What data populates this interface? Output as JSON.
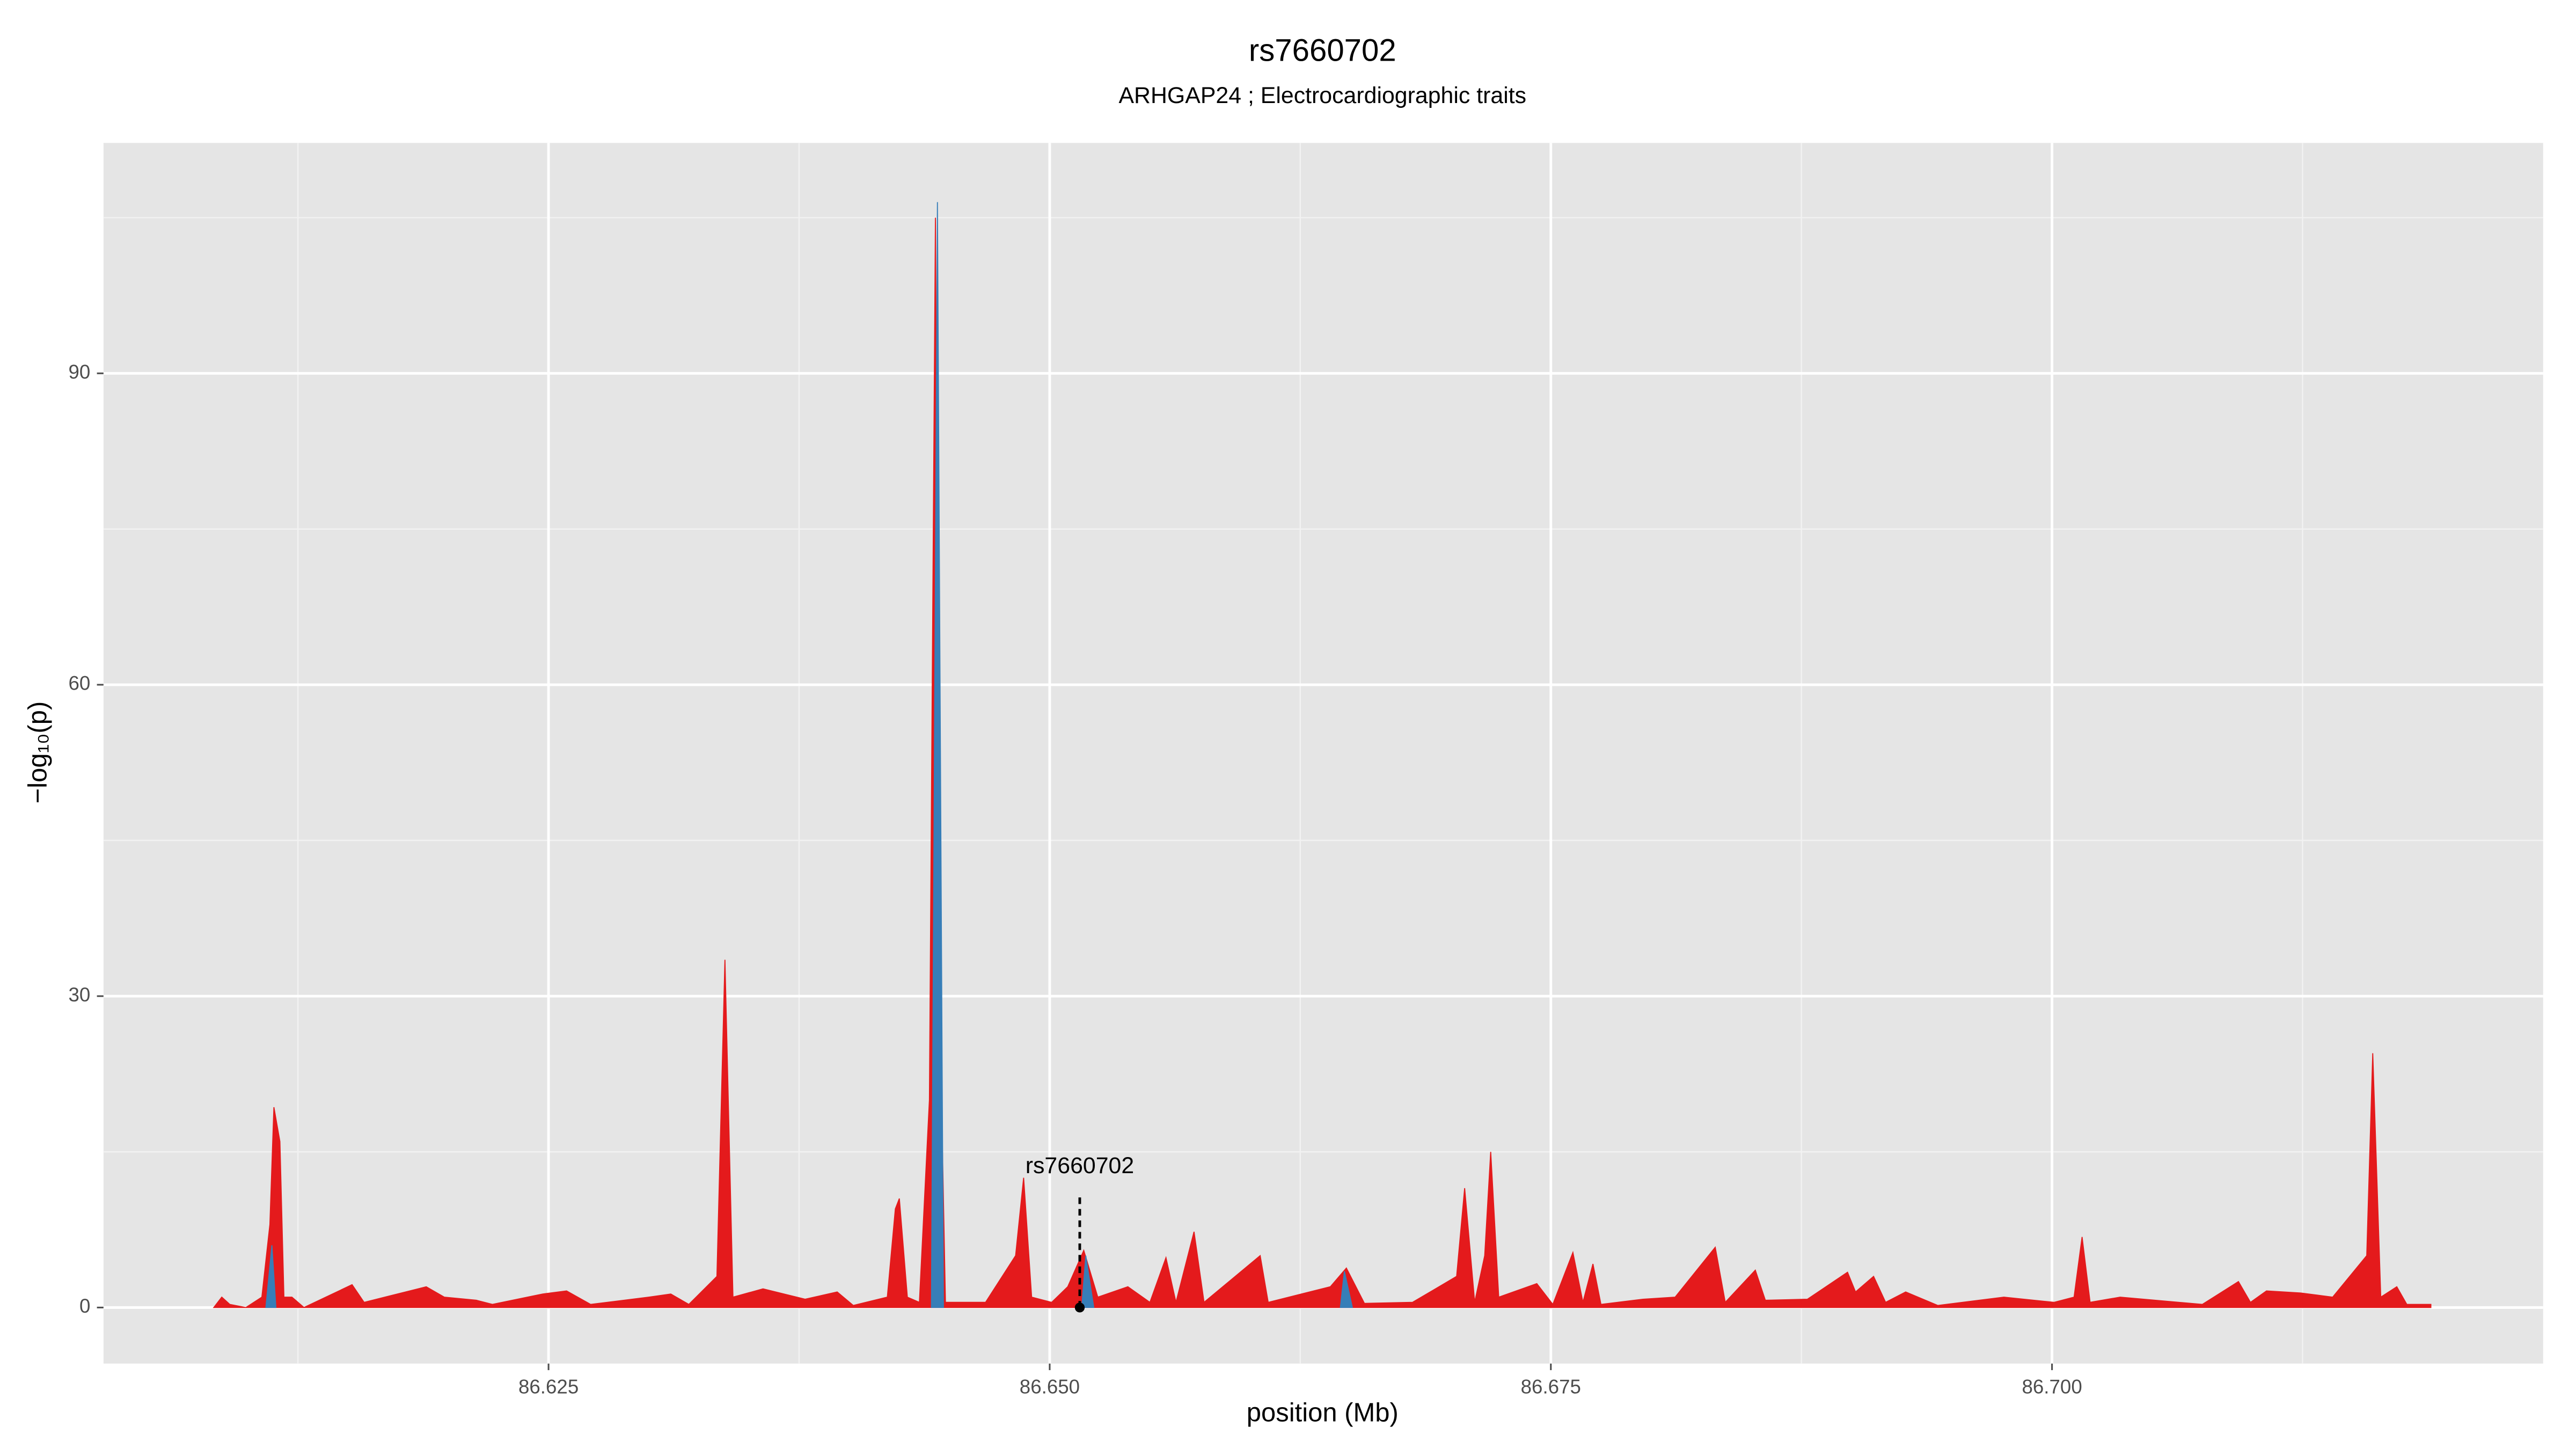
{
  "chart_data": {
    "type": "area",
    "title": "rs7660702",
    "subtitle": "ARHGAP24 ; Electrocardiographic traits",
    "x_label": "position (Mb)",
    "y_label": "−log₁₀(p)",
    "xlim": [
      86.6028,
      86.7245
    ],
    "ylim": [
      -5.4,
      112.2
    ],
    "xticks": [
      86.625,
      {
        "value": 86.65,
        "label": "86.650"
      },
      86.675,
      {
        "value": 86.7,
        "label": "86.700"
      }
    ],
    "yticks": [
      0,
      30,
      60,
      90
    ],
    "grid": true,
    "series": [
      {
        "color": "#e41a1c",
        "x": [
          86.6083,
          86.6087,
          86.6091,
          86.6099,
          86.6107,
          86.6111,
          86.6113,
          86.6116,
          86.6118,
          86.6122,
          86.6128,
          86.6152,
          86.6158,
          86.6189,
          86.6198,
          86.6214,
          86.6222,
          86.6247,
          86.6259,
          86.6271,
          86.63,
          86.6311,
          86.632,
          86.6334,
          86.6338,
          86.6342,
          86.6357,
          86.6378,
          86.6394,
          86.6402,
          86.6419,
          86.6423,
          86.6425,
          86.6429,
          86.6435,
          86.644,
          86.6443,
          86.6445,
          86.6448,
          86.6468,
          86.6483,
          86.6487,
          86.6491,
          86.6501,
          86.6509,
          86.6517,
          86.6524,
          86.6539,
          86.655,
          86.6558,
          86.6563,
          86.6572,
          86.6577,
          86.6605,
          86.6609,
          86.664,
          86.6648,
          86.6657,
          86.6681,
          86.6703,
          86.6707,
          86.6712,
          86.6717,
          86.672,
          86.6724,
          86.6743,
          86.6751,
          86.6761,
          86.6766,
          86.6771,
          86.6775,
          86.6796,
          86.6812,
          86.6832,
          86.6837,
          86.6852,
          86.6857,
          86.6878,
          86.6898,
          86.6902,
          86.6911,
          86.6917,
          86.6927,
          86.6943,
          86.6976,
          86.7001,
          86.7011,
          86.7015,
          86.7019,
          86.7034,
          86.7075,
          86.7093,
          86.7099,
          86.7107,
          86.7124,
          86.714,
          86.7157,
          86.716,
          86.7164,
          86.7172,
          86.7177,
          86.7189
        ],
        "values": [
          0,
          1,
          0.3,
          0,
          1,
          8,
          19.3,
          16,
          1,
          1,
          0,
          2.2,
          0.5,
          2,
          1,
          0.7,
          0.3,
          1.3,
          1.6,
          0.3,
          1,
          1.3,
          0.3,
          3,
          33.5,
          1,
          1.8,
          0.8,
          1.5,
          0.2,
          1,
          9.5,
          10.5,
          1,
          0.5,
          20,
          105,
          30,
          0.5,
          0.5,
          5,
          12.5,
          1,
          0.5,
          2,
          5.5,
          1,
          2,
          0.5,
          4.8,
          0.5,
          7.3,
          0.5,
          5,
          0.5,
          2,
          3.8,
          0.4,
          0.5,
          3,
          11.5,
          0.5,
          5,
          15,
          1,
          2.3,
          0.3,
          5.3,
          0.5,
          4.2,
          0.3,
          0.8,
          1,
          5.8,
          0.5,
          3.6,
          0.7,
          0.8,
          3.4,
          1.5,
          3,
          0.5,
          1.5,
          0.2,
          1,
          0.5,
          1,
          6.8,
          0.5,
          1,
          0.3,
          2.5,
          0.5,
          1.6,
          1.4,
          1,
          5,
          24.5,
          1,
          2,
          0.3,
          0.3
        ]
      },
      {
        "color": "#377eb8",
        "x": [
          86.6109,
          86.6112,
          86.6114,
          86.628,
          86.6441,
          86.6444,
          86.6447,
          86.65,
          86.6516,
          86.6518,
          86.6522,
          86.66,
          86.6645,
          86.6647,
          86.6651
        ],
        "values": [
          0,
          6,
          0,
          null,
          0,
          106.5,
          0,
          null,
          0,
          5,
          0,
          null,
          0,
          3.5,
          0
        ]
      }
    ],
    "annotations": [
      {
        "text": "rs7660702",
        "x": 86.6515,
        "y": 11
      }
    ]
  }
}
